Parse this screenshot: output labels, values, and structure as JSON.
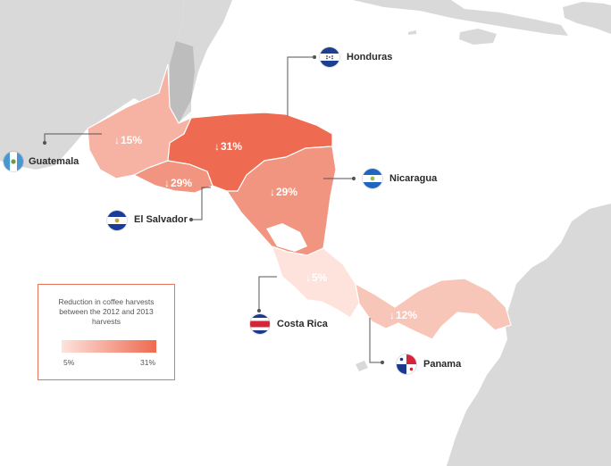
{
  "colors": {
    "land": "#d9d9d9",
    "water": "#ffffff",
    "belize": "#bdbdbd",
    "scale_low": "#fde3dc",
    "scale_high": "#ee6a50",
    "leader": "#555555",
    "legend_border": "#e8735a"
  },
  "countries": [
    {
      "id": "guatemala",
      "name": "Guatemala",
      "change_text": "15%",
      "reduction_pct": 15,
      "direction": "down",
      "flag_icon": "guatemala-flag-icon"
    },
    {
      "id": "honduras",
      "name": "Honduras",
      "change_text": "31%",
      "reduction_pct": 31,
      "direction": "down",
      "flag_icon": "honduras-flag-icon"
    },
    {
      "id": "el_salvador",
      "name": "El Salvador",
      "change_text": "29%",
      "reduction_pct": 29,
      "direction": "down",
      "flag_icon": "el-salvador-flag-icon"
    },
    {
      "id": "nicaragua",
      "name": "Nicaragua",
      "change_text": "29%",
      "reduction_pct": 29,
      "direction": "down",
      "flag_icon": "nicaragua-flag-icon"
    },
    {
      "id": "costa_rica",
      "name": "Costa Rica",
      "change_text": "5%",
      "reduction_pct": 5,
      "direction": "down",
      "flag_icon": "costa-rica-flag-icon"
    },
    {
      "id": "panama",
      "name": "Panama",
      "change_text": "12%",
      "reduction_pct": 12,
      "direction": "down",
      "flag_icon": "panama-flag-icon"
    }
  ],
  "legend": {
    "title": "Reduction in coffee harvests between the 2012 and 2013 harvests",
    "min_label": "5%",
    "max_label": "31%",
    "min_value": 5,
    "max_value": 31
  }
}
